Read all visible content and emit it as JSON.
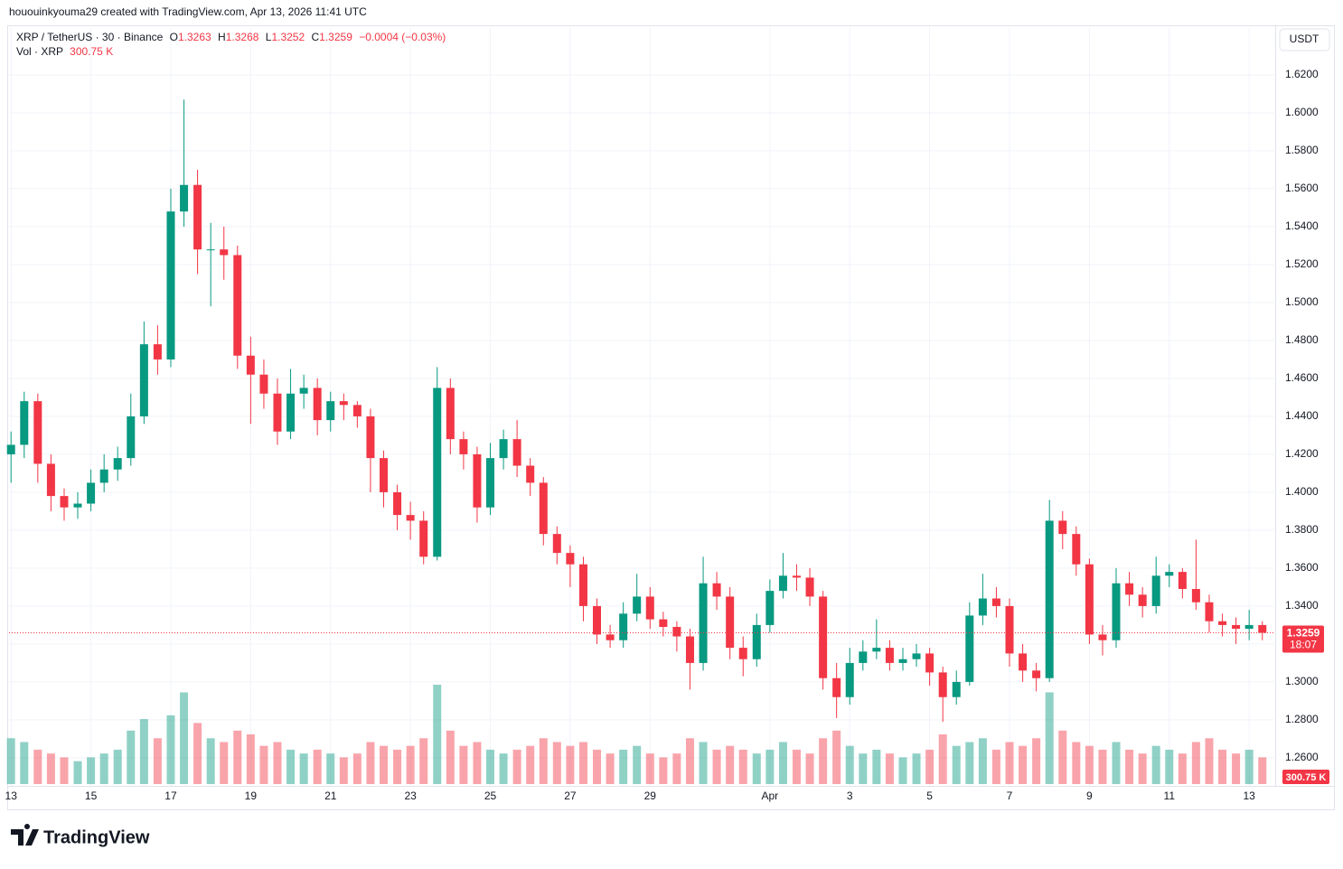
{
  "header": {
    "credit": "hououinkyouma29 created with TradingView.com, Apr 13, 2026 11:41 UTC"
  },
  "legend": {
    "symbol": "XRP / TetherUS · 30 · Binance",
    "open_label": "O",
    "open": "1.3263",
    "high_label": "H",
    "high": "1.3268",
    "low_label": "L",
    "low": "1.3252",
    "close_label": "C",
    "close": "1.3259",
    "change": "−0.0004 (−0.03%)",
    "volume_label": "Vol · XRP",
    "volume": "300.75 K"
  },
  "chart_data": {
    "type": "candlestick",
    "currency": "USDT",
    "up_color": "#089981",
    "down_color": "#f23645",
    "grid": true,
    "x": [
      0,
      0.33,
      0.67,
      1,
      1.33,
      1.67,
      2,
      2.33,
      2.67,
      3,
      3.33,
      3.67,
      4,
      4.33,
      4.67,
      5,
      5.33,
      5.67,
      6,
      6.33,
      6.67,
      7,
      7.33,
      7.67,
      8,
      8.33,
      8.67,
      9,
      9.33,
      9.67,
      10,
      10.33,
      10.67,
      11,
      11.33,
      11.67,
      12,
      12.33,
      12.67,
      13,
      13.33,
      13.67,
      14,
      14.33,
      14.67,
      15,
      15.33,
      15.67,
      16,
      16.33,
      16.67,
      17,
      17.33,
      17.67,
      18,
      18.33,
      18.67,
      19,
      19.33,
      19.67,
      20,
      20.33,
      20.67,
      21,
      21.33,
      21.67,
      22,
      22.33,
      22.67,
      23,
      23.33,
      23.67,
      24,
      24.33,
      24.67,
      25,
      25.33,
      25.67,
      26,
      26.33,
      26.67,
      27,
      27.33,
      27.67,
      28,
      28.33,
      28.67,
      29,
      29.33,
      29.67,
      30,
      30.33,
      30.67,
      31,
      31.33
    ],
    "open": [
      1.42,
      1.425,
      1.448,
      1.415,
      1.398,
      1.392,
      1.394,
      1.405,
      1.412,
      1.418,
      1.44,
      1.478,
      1.47,
      1.548,
      1.562,
      1.528,
      1.528,
      1.525,
      1.472,
      1.462,
      1.452,
      1.432,
      1.452,
      1.455,
      1.438,
      1.448,
      1.446,
      1.44,
      1.418,
      1.4,
      1.388,
      1.385,
      1.366,
      1.455,
      1.428,
      1.42,
      1.392,
      1.418,
      1.428,
      1.414,
      1.405,
      1.378,
      1.368,
      1.362,
      1.34,
      1.325,
      1.322,
      1.336,
      1.345,
      1.333,
      1.329,
      1.324,
      1.31,
      1.352,
      1.345,
      1.318,
      1.312,
      1.33,
      1.348,
      1.356,
      1.355,
      1.345,
      1.302,
      1.292,
      1.31,
      1.316,
      1.318,
      1.31,
      1.312,
      1.315,
      1.305,
      1.292,
      1.3,
      1.335,
      1.344,
      1.34,
      1.315,
      1.306,
      1.302,
      1.385,
      1.378,
      1.362,
      1.325,
      1.322,
      1.352,
      1.346,
      1.34,
      1.356,
      1.358,
      1.349,
      1.342,
      1.332,
      1.33,
      1.328,
      1.33
    ],
    "high": [
      1.432,
      1.453,
      1.452,
      1.42,
      1.402,
      1.4,
      1.412,
      1.42,
      1.424,
      1.452,
      1.49,
      1.488,
      1.56,
      1.607,
      1.57,
      1.542,
      1.54,
      1.53,
      1.482,
      1.47,
      1.46,
      1.465,
      1.462,
      1.46,
      1.453,
      1.452,
      1.448,
      1.444,
      1.422,
      1.404,
      1.395,
      1.39,
      1.466,
      1.46,
      1.432,
      1.424,
      1.426,
      1.433,
      1.438,
      1.418,
      1.408,
      1.382,
      1.372,
      1.366,
      1.344,
      1.33,
      1.342,
      1.357,
      1.35,
      1.337,
      1.332,
      1.328,
      1.366,
      1.358,
      1.35,
      1.324,
      1.336,
      1.354,
      1.368,
      1.362,
      1.36,
      1.348,
      1.31,
      1.318,
      1.322,
      1.333,
      1.322,
      1.318,
      1.32,
      1.318,
      1.308,
      1.306,
      1.342,
      1.357,
      1.35,
      1.344,
      1.32,
      1.31,
      1.396,
      1.39,
      1.382,
      1.365,
      1.33,
      1.36,
      1.358,
      1.35,
      1.366,
      1.362,
      1.36,
      1.375,
      1.346,
      1.336,
      1.334,
      1.338,
      1.332
    ],
    "low": [
      1.405,
      1.418,
      1.405,
      1.39,
      1.385,
      1.386,
      1.39,
      1.4,
      1.406,
      1.414,
      1.436,
      1.462,
      1.466,
      1.54,
      1.515,
      1.498,
      1.512,
      1.465,
      1.436,
      1.444,
      1.425,
      1.428,
      1.444,
      1.43,
      1.432,
      1.438,
      1.434,
      1.4,
      1.392,
      1.38,
      1.375,
      1.362,
      1.364,
      1.42,
      1.412,
      1.384,
      1.388,
      1.412,
      1.408,
      1.398,
      1.372,
      1.362,
      1.35,
      1.332,
      1.32,
      1.318,
      1.318,
      1.332,
      1.328,
      1.324,
      1.316,
      1.296,
      1.306,
      1.338,
      1.312,
      1.303,
      1.308,
      1.326,
      1.344,
      1.348,
      1.34,
      1.296,
      1.281,
      1.288,
      1.306,
      1.312,
      1.306,
      1.306,
      1.308,
      1.298,
      1.279,
      1.288,
      1.298,
      1.33,
      1.334,
      1.308,
      1.3,
      1.295,
      1.3,
      1.37,
      1.356,
      1.32,
      1.314,
      1.318,
      1.34,
      1.334,
      1.336,
      1.35,
      1.344,
      1.338,
      1.326,
      1.324,
      1.32,
      1.322,
      1.322
    ],
    "close": [
      1.425,
      1.448,
      1.415,
      1.398,
      1.392,
      1.394,
      1.405,
      1.412,
      1.418,
      1.44,
      1.478,
      1.47,
      1.548,
      1.562,
      1.528,
      1.528,
      1.525,
      1.472,
      1.462,
      1.452,
      1.432,
      1.452,
      1.455,
      1.438,
      1.448,
      1.446,
      1.44,
      1.418,
      1.4,
      1.388,
      1.385,
      1.366,
      1.455,
      1.428,
      1.42,
      1.392,
      1.418,
      1.428,
      1.414,
      1.405,
      1.378,
      1.368,
      1.362,
      1.34,
      1.325,
      1.322,
      1.336,
      1.345,
      1.333,
      1.329,
      1.324,
      1.31,
      1.352,
      1.345,
      1.318,
      1.312,
      1.33,
      1.348,
      1.356,
      1.355,
      1.345,
      1.302,
      1.292,
      1.31,
      1.316,
      1.318,
      1.31,
      1.312,
      1.315,
      1.305,
      1.292,
      1.3,
      1.335,
      1.344,
      1.34,
      1.315,
      1.306,
      1.302,
      1.385,
      1.378,
      1.362,
      1.325,
      1.322,
      1.352,
      1.346,
      1.34,
      1.356,
      1.358,
      1.349,
      1.342,
      1.332,
      1.33,
      1.328,
      1.33,
      1.3259
    ],
    "volume": [
      60,
      55,
      45,
      40,
      35,
      30,
      35,
      40,
      45,
      70,
      85,
      60,
      90,
      120,
      80,
      60,
      55,
      70,
      65,
      50,
      55,
      45,
      40,
      45,
      40,
      35,
      40,
      55,
      50,
      45,
      50,
      60,
      130,
      70,
      50,
      55,
      45,
      40,
      45,
      50,
      60,
      55,
      50,
      55,
      45,
      40,
      45,
      50,
      40,
      35,
      40,
      60,
      55,
      45,
      50,
      45,
      40,
      45,
      55,
      45,
      40,
      60,
      70,
      50,
      40,
      45,
      40,
      35,
      40,
      45,
      65,
      50,
      55,
      60,
      45,
      55,
      50,
      60,
      120,
      70,
      55,
      50,
      45,
      55,
      45,
      40,
      50,
      45,
      40,
      55,
      60,
      45,
      40,
      45,
      35
    ],
    "last_price": {
      "value": 1.3259,
      "label": "1.3259"
    },
    "countdown": "18:07",
    "last_volume_label": "300.75 K",
    "xlim": [
      -0.05,
      31.63
    ],
    "xticks": [
      {
        "value": 0,
        "label": "13"
      },
      {
        "value": 2,
        "label": "15"
      },
      {
        "value": 4,
        "label": "17"
      },
      {
        "value": 6,
        "label": "19"
      },
      {
        "value": 8,
        "label": "21"
      },
      {
        "value": 10,
        "label": "23"
      },
      {
        "value": 12,
        "label": "25"
      },
      {
        "value": 14,
        "label": "27"
      },
      {
        "value": 16,
        "label": "29"
      },
      {
        "value": 19,
        "label": "Apr"
      },
      {
        "value": 21,
        "label": "3"
      },
      {
        "value": 23,
        "label": "5"
      },
      {
        "value": 25,
        "label": "7"
      },
      {
        "value": 27,
        "label": "9"
      },
      {
        "value": 29,
        "label": "11"
      },
      {
        "value": 31,
        "label": "13"
      }
    ],
    "ylim": [
      1.2452,
      1.6452
    ],
    "yticks": [
      {
        "value": 1.26,
        "label": "1.2600"
      },
      {
        "value": 1.28,
        "label": "1.2800"
      },
      {
        "value": 1.3,
        "label": "1.3000"
      },
      {
        "value": 1.32,
        "label": "1.3200"
      },
      {
        "value": 1.34,
        "label": "1.3400"
      },
      {
        "value": 1.36,
        "label": "1.3600"
      },
      {
        "value": 1.38,
        "label": "1.3800"
      },
      {
        "value": 1.4,
        "label": "1.4000"
      },
      {
        "value": 1.42,
        "label": "1.4200"
      },
      {
        "value": 1.44,
        "label": "1.4400"
      },
      {
        "value": 1.46,
        "label": "1.4600"
      },
      {
        "value": 1.48,
        "label": "1.4800"
      },
      {
        "value": 1.5,
        "label": "1.5000"
      },
      {
        "value": 1.52,
        "label": "1.5200"
      },
      {
        "value": 1.54,
        "label": "1.5400"
      },
      {
        "value": 1.56,
        "label": "1.5600"
      },
      {
        "value": 1.58,
        "label": "1.5800"
      },
      {
        "value": 1.6,
        "label": "1.6000"
      },
      {
        "value": 1.62,
        "label": "1.6200"
      }
    ]
  },
  "footer": {
    "brand": "TradingView"
  }
}
